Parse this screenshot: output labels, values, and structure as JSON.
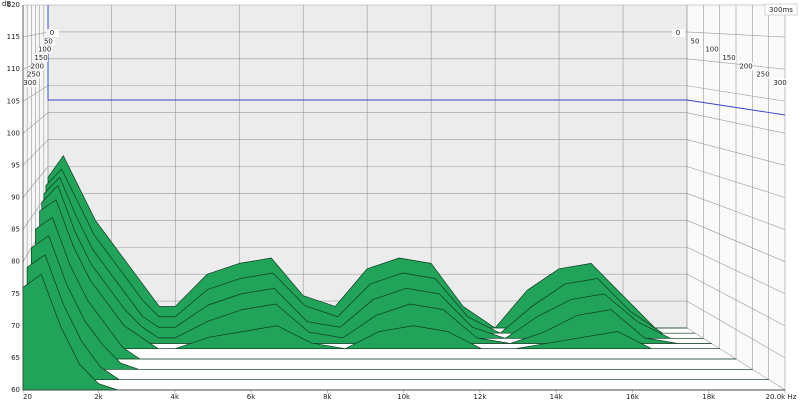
{
  "chart_data": {
    "type": "waterfall",
    "y_unit": "dB",
    "annotation": "300ms",
    "color": "#22a35a",
    "edge_color": "#0b3d1e",
    "xlim": [
      20,
      20000
    ],
    "xticks": [
      {
        "value": 20,
        "label": "20"
      },
      {
        "value": 2000,
        "label": "2k"
      },
      {
        "value": 4000,
        "label": "4k"
      },
      {
        "value": 6000,
        "label": "6k"
      },
      {
        "value": 8000,
        "label": "8k"
      },
      {
        "value": 10000,
        "label": "10k"
      },
      {
        "value": 12000,
        "label": "12k"
      },
      {
        "value": 14000,
        "label": "14k"
      },
      {
        "value": 16000,
        "label": "16k"
      },
      {
        "value": 18000,
        "label": "18k"
      },
      {
        "value": 20000,
        "label": "20.0k Hz"
      }
    ],
    "ylim": [
      60,
      120
    ],
    "yticks": [
      60,
      65,
      70,
      75,
      80,
      85,
      90,
      95,
      100,
      105,
      110,
      115,
      120
    ],
    "zlim": [
      0,
      300
    ],
    "zticks": [
      0,
      50,
      100,
      150,
      200,
      250,
      300
    ],
    "x": [
      20,
      500,
      1000,
      1500,
      2000,
      2500,
      3000,
      3500,
      4000,
      5000,
      6000,
      7000,
      8000,
      9000,
      10000,
      11000,
      12000,
      13000,
      14000,
      15000,
      16000,
      17000,
      18000,
      19000,
      20000
    ],
    "slices": [
      {
        "z": 0,
        "values": [
          88,
          92,
          86,
          80,
          76,
          72,
          68,
          64,
          64,
          70,
          72,
          73,
          66,
          64,
          71,
          73,
          72,
          64,
          60,
          67,
          71,
          72,
          66,
          60,
          60
        ]
      },
      {
        "z": 25,
        "values": [
          87,
          90,
          84,
          78,
          74,
          70,
          66,
          63,
          63,
          68,
          70,
          71,
          65,
          63,
          69,
          71,
          70,
          63,
          60,
          65,
          69,
          70,
          64,
          60,
          60
        ]
      },
      {
        "z": 50,
        "values": [
          86,
          89,
          82,
          76,
          72,
          68,
          64,
          62,
          62,
          66,
          68,
          69,
          63,
          62,
          67,
          69,
          68,
          62,
          60,
          64,
          67,
          68,
          63,
          60,
          60
        ]
      },
      {
        "z": 75,
        "values": [
          85,
          88,
          80,
          74,
          70,
          66,
          63,
          61,
          61,
          64,
          66,
          67,
          62,
          61,
          65,
          67,
          66,
          61,
          60,
          62,
          65,
          66,
          61,
          60,
          60
        ]
      },
      {
        "z": 100,
        "values": [
          84,
          86,
          78,
          72,
          68,
          64,
          62,
          60,
          60,
          62,
          63,
          64,
          61,
          60,
          63,
          64,
          63,
          60,
          60,
          61,
          62,
          63,
          60,
          60,
          60
        ]
      },
      {
        "z": 150,
        "values": [
          82,
          84,
          76,
          70,
          66,
          62,
          60,
          60,
          60,
          60,
          60,
          60,
          60,
          60,
          60,
          60,
          60,
          60,
          60,
          60,
          60,
          60,
          60,
          60,
          60
        ]
      },
      {
        "z": 200,
        "values": [
          80,
          82,
          74,
          68,
          64,
          61,
          60,
          60,
          60,
          60,
          60,
          60,
          60,
          60,
          60,
          60,
          60,
          60,
          60,
          60,
          60,
          60,
          60,
          60,
          60
        ]
      },
      {
        "z": 250,
        "values": [
          78,
          80,
          72,
          66,
          62,
          60,
          60,
          60,
          60,
          60,
          60,
          60,
          60,
          60,
          60,
          60,
          60,
          60,
          60,
          60,
          60,
          60,
          60,
          60,
          60
        ]
      },
      {
        "z": 300,
        "values": [
          76,
          78,
          70,
          64,
          61,
          60,
          60,
          60,
          60,
          60,
          60,
          60,
          60,
          60,
          60,
          60,
          60,
          60,
          60,
          60,
          60,
          60,
          60,
          60,
          60
        ]
      }
    ]
  }
}
